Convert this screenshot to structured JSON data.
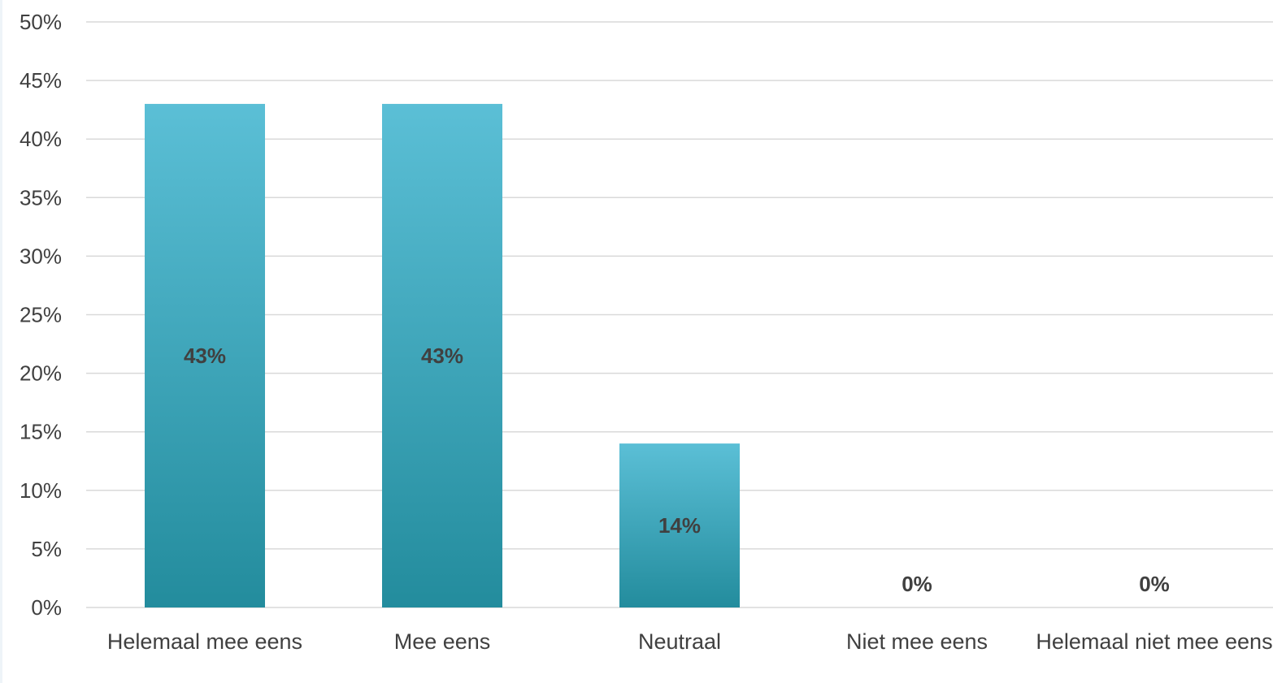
{
  "chart_data": {
    "type": "bar",
    "title": "",
    "xlabel": "",
    "ylabel": "",
    "categories": [
      "Helemaal mee eens",
      "Mee eens",
      "Neutraal",
      "Niet mee eens",
      "Helemaal niet mee eens"
    ],
    "values": [
      43,
      43,
      14,
      0,
      0
    ],
    "data_labels": [
      "43%",
      "43%",
      "14%",
      "0%",
      "0%"
    ],
    "y_ticks": [
      "0%",
      "5%",
      "10%",
      "15%",
      "20%",
      "25%",
      "30%",
      "35%",
      "40%",
      "45%",
      "50%"
    ],
    "ylim": [
      0,
      50
    ],
    "grid": true,
    "legend": "none",
    "colors": {
      "bar_top": "#5bbfd6",
      "bar_bottom": "#238c9d",
      "grid": "#d9d9d9",
      "text": "#404040"
    }
  }
}
